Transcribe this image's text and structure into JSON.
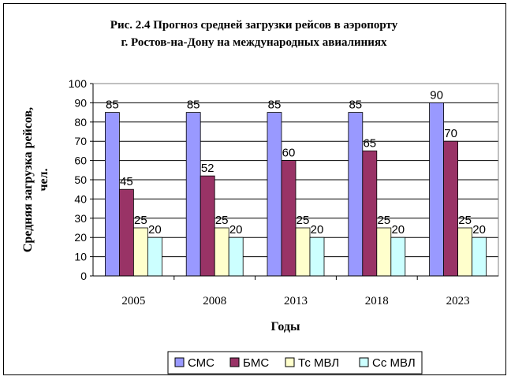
{
  "chart_data": {
    "type": "bar",
    "title_line1": "Рис. 2.4 Прогноз средней загрузки рейсов в аэропорту",
    "title_line2": "г. Ростов-на-Дону на международных авиалиниях",
    "xlabel": "Годы",
    "ylabel_line1": "Средняя загрузка рейсов,",
    "ylabel_line2": "чел.",
    "categories": [
      "2005",
      "2008",
      "2013",
      "2018",
      "2023"
    ],
    "ylim": [
      0,
      100
    ],
    "yticks": [
      0,
      10,
      20,
      30,
      40,
      50,
      60,
      70,
      80,
      90,
      100
    ],
    "grid": true,
    "legend_position": "bottom",
    "series": [
      {
        "name": "СМС",
        "color": "#9999ff",
        "values": [
          85,
          85,
          85,
          85,
          90
        ]
      },
      {
        "name": "БМС",
        "color": "#993366",
        "values": [
          45,
          52,
          60,
          65,
          70
        ]
      },
      {
        "name": "Тс МВЛ",
        "color": "#ffffcc",
        "values": [
          25,
          25,
          25,
          25,
          25
        ]
      },
      {
        "name": "Сс МВЛ",
        "color": "#ccffff",
        "values": [
          20,
          20,
          20,
          20,
          20
        ]
      }
    ]
  }
}
